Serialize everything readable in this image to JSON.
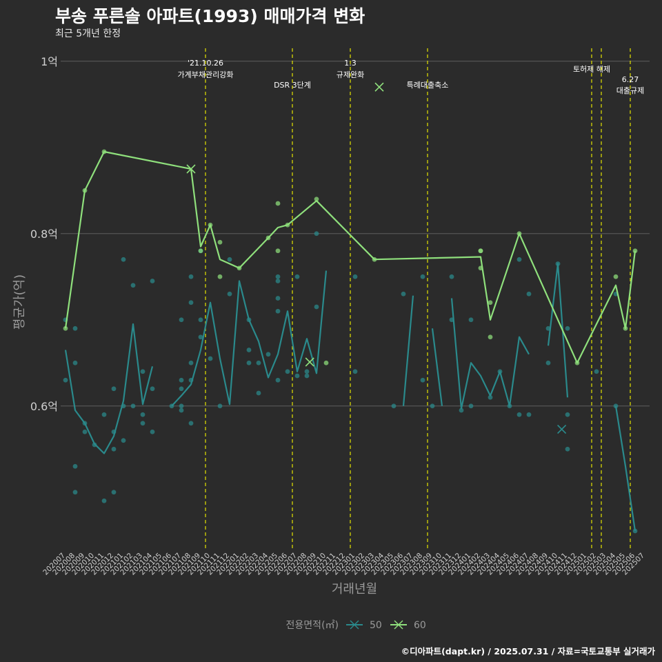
{
  "title": "부송 푸른솔 아파트(1993) 매매가격 변화",
  "subtitle": "최근 5개년 한정",
  "caption": "©디아파트(dapt.kr) / 2025.07.31 / 자료=국토교통부 실거래가",
  "chart_data": {
    "type": "line",
    "xlabel": "거래년월",
    "ylabel": "평균가(억)",
    "ylim": [
      0.435,
      1.015
    ],
    "yticks": [
      {
        "value": 0.6,
        "label": "0.6억"
      },
      {
        "value": 0.8,
        "label": "0.8억"
      },
      {
        "value": 1.0,
        "label": "1억"
      }
    ],
    "categories": [
      "202007",
      "202008",
      "202009",
      "202010",
      "202011",
      "202012",
      "202101",
      "202102",
      "202103",
      "202104",
      "202105",
      "202106",
      "202107",
      "202108",
      "202109",
      "202110",
      "202111",
      "202112",
      "202201",
      "202202",
      "202203",
      "202204",
      "202205",
      "202206",
      "202207",
      "202208",
      "202209",
      "202210",
      "202211",
      "202212",
      "202301",
      "202302",
      "202303",
      "202304",
      "202305",
      "202306",
      "202307",
      "202308",
      "202309",
      "202310",
      "202311",
      "202312",
      "202401",
      "202402",
      "202403",
      "202404",
      "202405",
      "202406",
      "202407",
      "202408",
      "202409",
      "202410",
      "202411",
      "202412",
      "202501",
      "202502",
      "202503",
      "202504",
      "202505",
      "202506",
      "202507"
    ],
    "legend": {
      "title": "전용면적(㎡)",
      "position": "bottom"
    },
    "grid": true,
    "colors": {
      "background": "#2b2b2b",
      "grid": "#5e5e5e",
      "text": "#d0d0d0",
      "event_line": "#e5e500",
      "series_50": "#2a8a8c",
      "series_60": "#8fe07c"
    },
    "series": [
      {
        "name": "50",
        "color": "#2a8a8c",
        "line": [
          [
            [
              0,
              0.665
            ],
            [
              1,
              0.595
            ],
            [
              2,
              0.58
            ],
            [
              3,
              0.556
            ],
            [
              4,
              0.545
            ],
            [
              5,
              0.565
            ],
            [
              6,
              0.606
            ],
            [
              7,
              0.695
            ],
            [
              8,
              0.602
            ],
            [
              9,
              0.646
            ]
          ],
          [
            [
              11,
              0.6
            ],
            [
              12,
              0.612
            ],
            [
              13,
              0.625
            ],
            [
              14,
              0.665
            ],
            [
              15,
              0.72
            ],
            [
              16,
              0.655
            ],
            [
              17,
              0.602
            ],
            [
              18,
              0.745
            ],
            [
              19,
              0.7
            ],
            [
              20,
              0.675
            ],
            [
              21,
              0.633
            ],
            [
              22,
              0.66
            ],
            [
              23,
              0.71
            ],
            [
              24,
              0.64
            ],
            [
              25,
              0.678
            ],
            [
              26,
              0.638
            ],
            [
              27,
              0.757
            ]
          ],
          [
            [
              35,
              0.6
            ],
            [
              36,
              0.728
            ]
          ],
          [
            [
              38,
              0.69
            ],
            [
              39,
              0.6
            ]
          ],
          [
            [
              40,
              0.725
            ],
            [
              41,
              0.597
            ],
            [
              42,
              0.65
            ],
            [
              43,
              0.635
            ],
            [
              44,
              0.612
            ],
            [
              45,
              0.64
            ],
            [
              46,
              0.6
            ],
            [
              47,
              0.68
            ],
            [
              48,
              0.66
            ]
          ],
          [
            [
              50,
              0.67
            ],
            [
              51,
              0.765
            ],
            [
              52,
              0.61
            ]
          ],
          [
            [
              57,
              0.6
            ],
            [
              58,
              0.53
            ],
            [
              59,
              0.455
            ]
          ]
        ],
        "points": [
          [
            0,
            0.63
          ],
          [
            0,
            0.7
          ],
          [
            1,
            0.69
          ],
          [
            1,
            0.65
          ],
          [
            1,
            0.53
          ],
          [
            1,
            0.5
          ],
          [
            2,
            0.58
          ],
          [
            2,
            0.57
          ],
          [
            3,
            0.555
          ],
          [
            4,
            0.59
          ],
          [
            4,
            0.49
          ],
          [
            5,
            0.62
          ],
          [
            5,
            0.55
          ],
          [
            5,
            0.57
          ],
          [
            5,
            0.5
          ],
          [
            6,
            0.77
          ],
          [
            6,
            0.6
          ],
          [
            6,
            0.56
          ],
          [
            7,
            0.74
          ],
          [
            7,
            0.6
          ],
          [
            8,
            0.64
          ],
          [
            8,
            0.59
          ],
          [
            8,
            0.58
          ],
          [
            9,
            0.745
          ],
          [
            9,
            0.62
          ],
          [
            9,
            0.57
          ],
          [
            11,
            0.6
          ],
          [
            12,
            0.7
          ],
          [
            12,
            0.63
          ],
          [
            12,
            0.62
          ],
          [
            12,
            0.6
          ],
          [
            12,
            0.595
          ],
          [
            13,
            0.75
          ],
          [
            13,
            0.72
          ],
          [
            13,
            0.65
          ],
          [
            13,
            0.63
          ],
          [
            13,
            0.58
          ],
          [
            14,
            0.78
          ],
          [
            14,
            0.7
          ],
          [
            14,
            0.68
          ],
          [
            15,
            0.655
          ],
          [
            16,
            0.6
          ],
          [
            17,
            0.77
          ],
          [
            17,
            0.73
          ],
          [
            19,
            0.7
          ],
          [
            19,
            0.665
          ],
          [
            19,
            0.65
          ],
          [
            20,
            0.65
          ],
          [
            20,
            0.615
          ],
          [
            21,
            0.66
          ],
          [
            22,
            0.75
          ],
          [
            22,
            0.745
          ],
          [
            22,
            0.725
          ],
          [
            22,
            0.71
          ],
          [
            22,
            0.63
          ],
          [
            23,
            0.64
          ],
          [
            24,
            0.75
          ],
          [
            24,
            0.635
          ],
          [
            25,
            0.64
          ],
          [
            25,
            0.635
          ],
          [
            26,
            0.8
          ],
          [
            26,
            0.715
          ],
          [
            30,
            0.75
          ],
          [
            30,
            0.64
          ],
          [
            34,
            0.6
          ],
          [
            35,
            0.73
          ],
          [
            37,
            0.75
          ],
          [
            37,
            0.63
          ],
          [
            38,
            0.6
          ],
          [
            40,
            0.75
          ],
          [
            40,
            0.7
          ],
          [
            41,
            0.595
          ],
          [
            42,
            0.7
          ],
          [
            42,
            0.6
          ],
          [
            44,
            0.61
          ],
          [
            45,
            0.64
          ],
          [
            46,
            0.6
          ],
          [
            47,
            0.77
          ],
          [
            47,
            0.59
          ],
          [
            48,
            0.73
          ],
          [
            48,
            0.59
          ],
          [
            50,
            0.69
          ],
          [
            50,
            0.65
          ],
          [
            51,
            0.765
          ],
          [
            52,
            0.69
          ],
          [
            52,
            0.59
          ],
          [
            52,
            0.55
          ],
          [
            55,
            0.64
          ],
          [
            57,
            0.6
          ],
          [
            57,
            0.73
          ],
          [
            59,
            0.455
          ]
        ],
        "markers": [
          [
            51.4,
            0.573
          ]
        ]
      },
      {
        "name": "60",
        "color": "#8fe07c",
        "line": [
          [
            [
              0,
              0.69
            ],
            [
              2,
              0.85
            ],
            [
              4,
              0.895
            ],
            [
              13,
              0.875
            ],
            [
              14,
              0.785
            ],
            [
              15,
              0.81
            ],
            [
              16,
              0.77
            ],
            [
              18,
              0.76
            ],
            [
              21,
              0.795
            ],
            [
              22,
              0.807
            ],
            [
              23,
              0.81
            ],
            [
              26,
              0.838
            ],
            [
              32,
              0.77
            ],
            [
              43,
              0.773
            ],
            [
              44,
              0.7
            ],
            [
              47,
              0.8
            ],
            [
              53,
              0.65
            ],
            [
              57,
              0.74
            ],
            [
              58,
              0.69
            ],
            [
              59,
              0.78
            ]
          ]
        ],
        "points": [
          [
            0,
            0.69
          ],
          [
            2,
            0.85
          ],
          [
            4,
            0.895
          ],
          [
            14,
            0.78
          ],
          [
            15,
            0.81
          ],
          [
            16,
            0.79
          ],
          [
            16,
            0.75
          ],
          [
            18,
            0.76
          ],
          [
            21,
            0.795
          ],
          [
            22,
            0.835
          ],
          [
            22,
            0.78
          ],
          [
            23,
            0.81
          ],
          [
            26,
            0.84
          ],
          [
            27,
            0.65
          ],
          [
            32,
            0.77
          ],
          [
            43,
            0.78
          ],
          [
            43,
            0.78
          ],
          [
            43,
            0.76
          ],
          [
            44,
            0.72
          ],
          [
            44,
            0.68
          ],
          [
            47,
            0.8
          ],
          [
            53,
            0.65
          ],
          [
            57,
            0.75
          ],
          [
            58,
            0.69
          ],
          [
            59,
            0.78
          ]
        ],
        "markers": [
          [
            13,
            0.875
          ],
          [
            25.3,
            0.651
          ],
          [
            32.5,
            0.97
          ]
        ]
      }
    ],
    "events": [
      {
        "x": 14.5,
        "label1": "'21.10.26",
        "label2": "가계부채관리강화",
        "pos": "top"
      },
      {
        "x": 23.5,
        "label1": "",
        "label2": "DSR 3단계",
        "pos": "mid"
      },
      {
        "x": 29.5,
        "label1": "1.3",
        "label2": "규제완화",
        "pos": "top"
      },
      {
        "x": 37.5,
        "label1": "",
        "label2": "특례대출축소",
        "pos": "mid"
      },
      {
        "x": 54.5,
        "label1": "",
        "label2": "토허제 해제",
        "pos": "upper"
      },
      {
        "x": 55.5,
        "label1": "",
        "label2": "",
        "pos": "none"
      },
      {
        "x": 58.5,
        "label1": "6.27",
        "label2": "대출규제",
        "pos": "low"
      }
    ]
  }
}
